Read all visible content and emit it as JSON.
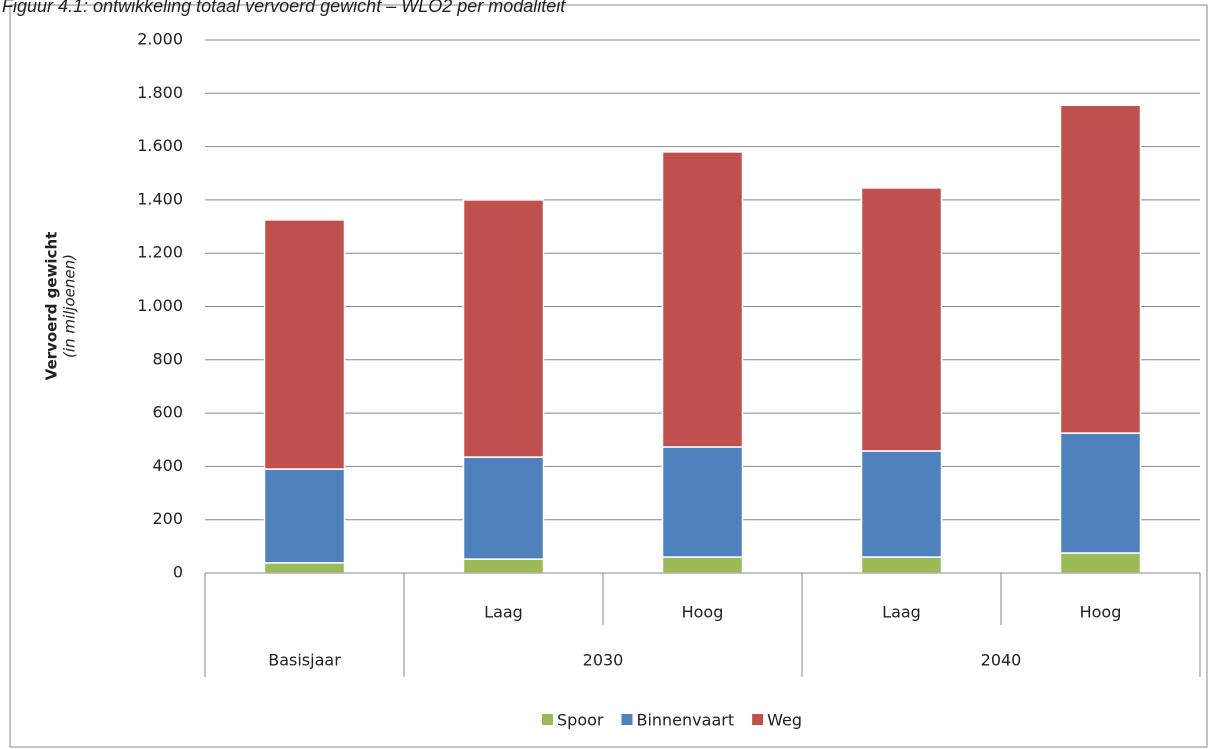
{
  "chart_data": {
    "type": "stacked_bar",
    "title": "Figuur 4.1: ontwikkeling totaal vervoerd gewicht – WLO2 per modaliteit",
    "y_label": "Vervoerd gewicht",
    "y_sublabel": "(in miljoenen)",
    "categories": [
      null,
      "Laag",
      "Hoog",
      "Laag",
      "Hoog"
    ],
    "category_groups": [
      "Basisjaar",
      "2030",
      "2030",
      "2040",
      "2040"
    ],
    "series": [
      {
        "name": "Spoor",
        "color": "#9bbb59",
        "values": [
          38,
          52,
          60,
          60,
          75
        ]
      },
      {
        "name": "Binnenvaart",
        "color": "#4f81bd",
        "values": [
          352,
          383,
          413,
          398,
          450
        ]
      },
      {
        "name": "Weg",
        "color": "#c0504d",
        "values": [
          935,
          965,
          1107,
          987,
          1230
        ]
      }
    ],
    "ylim": [
      0,
      2000
    ],
    "yticks": [
      0,
      200,
      400,
      600,
      800,
      {
        "value": 1000,
        "label": "1.000"
      },
      {
        "value": 1200,
        "label": "1.200"
      },
      {
        "value": 1400,
        "label": "1.400"
      },
      {
        "value": 1600,
        "label": "1.600"
      },
      {
        "value": 1800,
        "label": "1.800"
      },
      {
        "value": 2000,
        "label": "2.000"
      }
    ],
    "grid": true,
    "legend": "bottom"
  }
}
